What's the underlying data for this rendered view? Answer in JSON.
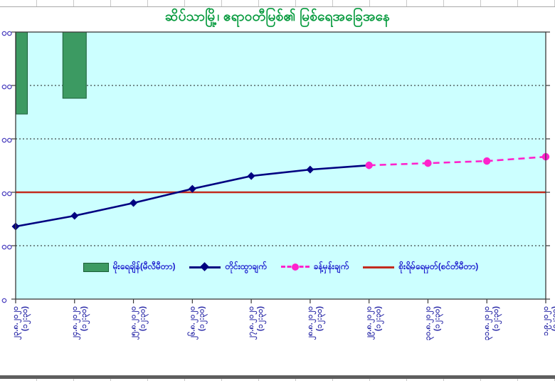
{
  "title": "ဆိပ်သာမြို့၊ ဧရာဝတီမြစ်၏ မြစ်ရေအခြေအနေ",
  "colors": {
    "title_green": "#089B3F",
    "plot_background": "#CCFFFF",
    "rain_bar_fill": "#3C9A62",
    "rain_bar_border": "#1B5E38",
    "observed_line": "#000080",
    "forecast_line": "#FF22CC",
    "danger_line": "#C22B1E",
    "gridline": "#1A1A1A",
    "axis": "#3A3A3A",
    "y_label_text": "#4A3FBF",
    "x_label_text": "#2B2BA8",
    "legend_text": "#1A1ACD"
  },
  "chart_data": {
    "type": "line+bar",
    "title": "ဆိပ်သာမြို့၊ ဧရာဝတီမြစ်၏ မြစ်ရေအခြေအနေ",
    "categories": [
      "၂၃.၈.၂၀၂၀",
      "၂၄.၈.၂၀၂၀",
      "၂၅.၈.၂၀၂၀",
      "၂၆.၈.၂၀၂၀",
      "၂၇.၈.၂၀၂၀",
      "၂၈.၈.၂၀၂၀",
      "၂၉.၈.၂၀၂၀",
      "၃၀.၈.၂၀၂၀",
      "၃၁.၈.၂၀၂၀",
      "၁.၉.၂၀၂၀"
    ],
    "category_time_label": "(၁၂:၃၀)",
    "x_labels_rotated_degrees": 90,
    "y_axis": {
      "min": 0,
      "max": 1000,
      "tick_step": 200,
      "tick_labels_cropped": true,
      "visible_tick_label_fragments": [
        "၀၀",
        "၀၀",
        "၀၀",
        "၀၀",
        "၀၀",
        "၀"
      ],
      "gridline_values": [
        200,
        400,
        600,
        800
      ],
      "gridline_style": "dotted"
    },
    "series": [
      {
        "name": "မိုးရေချိန်(မီလီမီတာ)",
        "type": "bar",
        "hangs_from_top": true,
        "values": [
          307,
          248,
          null,
          null,
          null,
          null,
          null,
          null,
          null,
          null
        ]
      },
      {
        "name": "တိုင်းထွာချက်",
        "type": "line",
        "marker": "diamond",
        "values": [
          272,
          312,
          360,
          413,
          461,
          485,
          501,
          null,
          null,
          null
        ]
      },
      {
        "name": "ခန့်မှန်းချက်",
        "type": "dashed-line",
        "marker": "circle",
        "values": [
          null,
          null,
          null,
          null,
          null,
          null,
          501,
          509,
          517,
          533
        ]
      },
      {
        "name": "စိုးရိမ်ရေမှတ်(စင်တီမီတာ)",
        "type": "threshold-line",
        "value": 400
      }
    ],
    "legend_position": "bottom-inside"
  }
}
